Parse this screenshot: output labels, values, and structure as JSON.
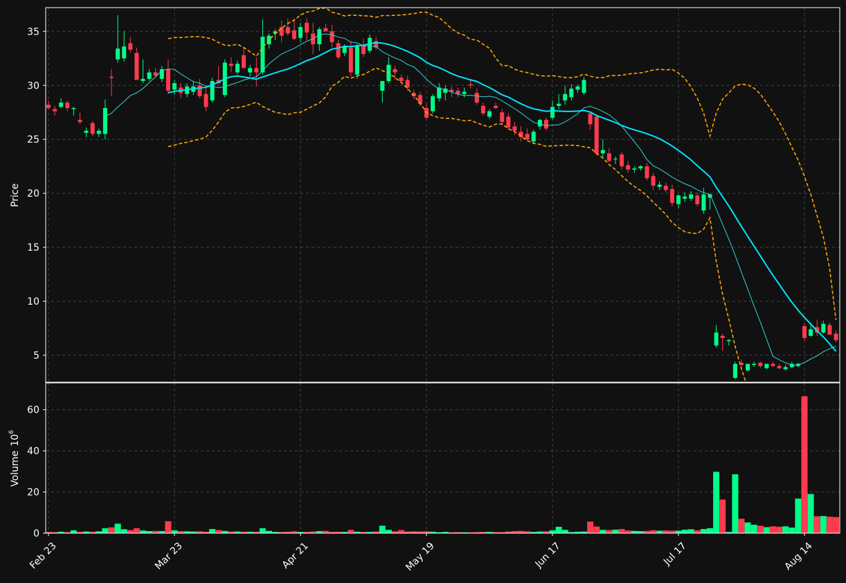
{
  "chart_data": {
    "type": "candlestick",
    "colors": {
      "background": "#111111",
      "up": "#00ff88",
      "down": "#ff3b4e",
      "grid": "#444444",
      "axis": "#ffffff",
      "ma_fast": "#33d6d6",
      "ma_slow": "#00e5ff",
      "bands": "#ffa500"
    },
    "price_panel": {
      "ylabel": "Price",
      "ylim": [
        2.5,
        37.2
      ],
      "yticks": [
        5,
        10,
        15,
        20,
        25,
        30,
        35
      ]
    },
    "volume_panel": {
      "ylabel": "Volume",
      "ylabel_exp": "6",
      "ylim": [
        0,
        73
      ],
      "yticks": [
        0,
        20,
        40,
        60
      ]
    },
    "x_ticks": [
      {
        "label": "Feb 23",
        "i": 0
      },
      {
        "label": "Mar 23",
        "i": 20
      },
      {
        "label": "Apr 21",
        "i": 40
      },
      {
        "label": "May 19",
        "i": 60
      },
      {
        "label": "Jun 17",
        "i": 80
      },
      {
        "label": "Jul 17",
        "i": 100
      },
      {
        "label": "Aug 14",
        "i": 120
      }
    ],
    "candles": [
      [
        28.2,
        28.6,
        27.7,
        27.9,
        0.6
      ],
      [
        27.8,
        28.1,
        27.2,
        27.6,
        0.5
      ],
      [
        28.0,
        28.8,
        27.9,
        28.4,
        0.7
      ],
      [
        28.4,
        28.6,
        27.6,
        27.9,
        0.5
      ],
      [
        27.8,
        28.0,
        27.2,
        27.9,
        1.4
      ],
      [
        26.8,
        27.5,
        26.4,
        26.6,
        0.6
      ],
      [
        25.6,
        26.1,
        25.2,
        25.8,
        0.8
      ],
      [
        26.5,
        26.7,
        25.3,
        25.5,
        0.7
      ],
      [
        25.5,
        26.0,
        25.2,
        25.8,
        0.9
      ],
      [
        25.5,
        28.7,
        25.0,
        27.9,
        2.4
      ],
      [
        30.8,
        31.5,
        29.0,
        30.7,
        2.8
      ],
      [
        32.4,
        36.5,
        32.1,
        33.4,
        4.6
      ],
      [
        32.5,
        35.0,
        32.2,
        33.6,
        1.9
      ],
      [
        33.9,
        34.5,
        33.0,
        33.3,
        1.5
      ],
      [
        33.0,
        33.5,
        30.5,
        30.5,
        2.4
      ],
      [
        30.4,
        32.4,
        30.2,
        30.6,
        1.3
      ],
      [
        30.6,
        31.5,
        30.4,
        31.2,
        1.0
      ],
      [
        31.2,
        31.6,
        30.8,
        30.9,
        1.1
      ],
      [
        30.6,
        31.8,
        30.3,
        31.5,
        1.0
      ],
      [
        31.5,
        32.4,
        29.2,
        29.5,
        5.8
      ],
      [
        29.6,
        30.5,
        29.1,
        30.2,
        1.4
      ],
      [
        29.8,
        30.2,
        28.8,
        29.3,
        1.0
      ],
      [
        29.2,
        30.2,
        28.9,
        29.9,
        0.9
      ],
      [
        29.4,
        30.4,
        29.1,
        29.9,
        0.8
      ],
      [
        30.0,
        30.6,
        28.8,
        29.0,
        0.9
      ],
      [
        29.2,
        29.9,
        27.6,
        28.0,
        0.7
      ],
      [
        28.6,
        30.7,
        28.4,
        30.4,
        2.0
      ],
      [
        30.5,
        31.8,
        30.1,
        30.2,
        1.5
      ],
      [
        29.1,
        32.4,
        28.9,
        32.1,
        1.1
      ],
      [
        32.0,
        32.6,
        31.2,
        31.8,
        0.8
      ],
      [
        31.2,
        32.3,
        31.0,
        32.0,
        0.8
      ],
      [
        32.8,
        33.5,
        31.6,
        31.6,
        0.7
      ],
      [
        31.2,
        31.9,
        30.8,
        31.6,
        0.7
      ],
      [
        31.6,
        32.6,
        29.9,
        31.2,
        0.7
      ],
      [
        31.2,
        36.1,
        31.0,
        34.5,
        2.4
      ],
      [
        33.8,
        34.8,
        33.4,
        34.6,
        1.1
      ],
      [
        34.8,
        35.2,
        34.2,
        35.0,
        0.6
      ],
      [
        35.4,
        36.0,
        34.0,
        34.6,
        0.6
      ],
      [
        35.4,
        36.2,
        34.6,
        34.8,
        0.7
      ],
      [
        35.1,
        36.2,
        34.2,
        34.3,
        0.9
      ],
      [
        34.4,
        35.8,
        34.0,
        35.4,
        0.6
      ],
      [
        35.8,
        36.2,
        34.2,
        34.9,
        0.6
      ],
      [
        34.8,
        35.8,
        32.9,
        33.8,
        0.8
      ],
      [
        33.8,
        35.4,
        33.2,
        35.2,
        1.0
      ],
      [
        35.3,
        35.7,
        35.0,
        35.0,
        1.1
      ],
      [
        35.0,
        35.6,
        33.5,
        34.0,
        0.6
      ],
      [
        33.9,
        34.2,
        32.4,
        32.6,
        0.7
      ],
      [
        33.0,
        33.8,
        32.7,
        33.6,
        0.6
      ],
      [
        33.5,
        34.1,
        30.8,
        31.2,
        1.6
      ],
      [
        31.0,
        33.8,
        30.6,
        33.6,
        0.7
      ],
      [
        33.7,
        34.3,
        32.6,
        32.9,
        0.6
      ],
      [
        33.2,
        34.7,
        33.0,
        34.4,
        0.6
      ],
      [
        34.1,
        34.5,
        33.3,
        33.5,
        0.8
      ],
      [
        29.5,
        30.4,
        28.4,
        30.4,
        3.6
      ],
      [
        30.4,
        32.6,
        30.2,
        31.9,
        1.6
      ],
      [
        31.5,
        31.8,
        30.5,
        31.2,
        0.9
      ],
      [
        30.7,
        31.0,
        30.2,
        30.4,
        1.5
      ],
      [
        30.5,
        30.9,
        29.5,
        29.8,
        0.8
      ],
      [
        29.3,
        29.6,
        28.7,
        29.0,
        0.9
      ],
      [
        29.1,
        29.4,
        28.1,
        28.3,
        0.8
      ],
      [
        27.9,
        28.3,
        26.8,
        27.0,
        0.9
      ],
      [
        27.6,
        29.2,
        27.4,
        29.0,
        0.7
      ],
      [
        28.8,
        30.2,
        28.5,
        29.8,
        0.4
      ],
      [
        29.3,
        30.0,
        28.6,
        29.7,
        0.6
      ],
      [
        29.6,
        29.9,
        28.9,
        29.4,
        0.4
      ],
      [
        29.5,
        29.8,
        28.9,
        29.2,
        0.5
      ],
      [
        29.2,
        29.8,
        28.9,
        29.4,
        0.4
      ],
      [
        30.1,
        30.6,
        29.7,
        30.0,
        0.4
      ],
      [
        29.3,
        29.7,
        28.2,
        28.4,
        0.5
      ],
      [
        28.1,
        28.4,
        27.2,
        27.4,
        0.6
      ],
      [
        27.1,
        27.8,
        26.9,
        27.6,
        0.6
      ],
      [
        28.1,
        28.4,
        27.8,
        27.9,
        0.5
      ],
      [
        27.5,
        27.8,
        26.3,
        26.6,
        0.5
      ],
      [
        27.1,
        27.4,
        25.9,
        26.1,
        0.8
      ],
      [
        26.2,
        26.6,
        25.4,
        25.8,
        1.0
      ],
      [
        25.7,
        26.2,
        24.8,
        25.2,
        1.1
      ],
      [
        25.5,
        26.0,
        24.9,
        25.0,
        0.9
      ],
      [
        24.8,
        25.9,
        24.6,
        25.7,
        0.6
      ],
      [
        26.2,
        26.9,
        25.9,
        26.8,
        0.8
      ],
      [
        26.8,
        27.0,
        25.8,
        26.0,
        0.9
      ],
      [
        27.0,
        28.6,
        26.8,
        28.0,
        1.4
      ],
      [
        28.1,
        29.2,
        27.8,
        28.3,
        3.1
      ],
      [
        28.6,
        30.0,
        28.2,
        29.2,
        1.6
      ],
      [
        28.9,
        30.1,
        28.6,
        29.7,
        0.5
      ],
      [
        29.6,
        30.1,
        29.3,
        29.9,
        0.7
      ],
      [
        29.3,
        30.8,
        29.1,
        30.5,
        0.8
      ],
      [
        27.4,
        27.6,
        25.9,
        26.4,
        5.6
      ],
      [
        27.1,
        27.2,
        23.5,
        23.7,
        3.2
      ],
      [
        23.7,
        25.0,
        23.2,
        24.0,
        1.6
      ],
      [
        23.7,
        24.2,
        22.9,
        23.0,
        1.5
      ],
      [
        23.2,
        23.4,
        22.7,
        23.2,
        1.7
      ],
      [
        23.6,
        23.8,
        22.2,
        22.5,
        2.0
      ],
      [
        22.6,
        23.0,
        21.9,
        22.2,
        1.3
      ],
      [
        22.2,
        22.5,
        21.9,
        22.3,
        1.1
      ],
      [
        22.3,
        22.6,
        22.1,
        22.5,
        1.0
      ],
      [
        22.5,
        22.8,
        21.2,
        21.4,
        1.1
      ],
      [
        21.6,
        21.9,
        20.3,
        20.7,
        1.4
      ],
      [
        20.6,
        21.1,
        20.3,
        20.8,
        1.2
      ],
      [
        20.7,
        21.0,
        20.1,
        20.3,
        1.3
      ],
      [
        20.4,
        20.8,
        18.8,
        19.1,
        1.2
      ],
      [
        19.0,
        19.9,
        18.6,
        19.8,
        1.2
      ],
      [
        19.5,
        20.1,
        19.2,
        19.7,
        1.7
      ],
      [
        19.5,
        20.2,
        19.3,
        19.9,
        1.9
      ],
      [
        19.8,
        20.1,
        18.8,
        19.0,
        1.4
      ],
      [
        18.4,
        20.5,
        18.1,
        19.9,
        2.0
      ],
      [
        19.6,
        19.9,
        18.5,
        19.9,
        2.4
      ],
      [
        5.9,
        7.8,
        5.7,
        7.1,
        29.8
      ],
      [
        6.8,
        7.0,
        5.4,
        6.6,
        16.3
      ],
      [
        6.3,
        6.5,
        5.9,
        6.4,
        0.6
      ],
      [
        2.9,
        4.4,
        2.8,
        4.2,
        28.6
      ],
      [
        4.3,
        4.6,
        3.9,
        4.1,
        7.0
      ],
      [
        3.6,
        4.2,
        3.5,
        4.2,
        5.2
      ],
      [
        4.1,
        4.4,
        3.9,
        4.2,
        4.1
      ],
      [
        4.3,
        4.4,
        3.8,
        4.0,
        3.6
      ],
      [
        3.8,
        4.2,
        3.7,
        4.2,
        2.9
      ],
      [
        4.2,
        4.4,
        3.9,
        4.0,
        3.3
      ],
      [
        4.0,
        4.2,
        3.7,
        3.8,
        3.1
      ],
      [
        3.7,
        4.1,
        3.6,
        3.9,
        3.3
      ],
      [
        3.9,
        4.4,
        3.8,
        4.2,
        2.7
      ],
      [
        4.0,
        4.3,
        3.9,
        4.2,
        16.8
      ],
      [
        7.7,
        8.0,
        6.4,
        6.6,
        66.5
      ],
      [
        6.8,
        7.9,
        6.7,
        7.4,
        19.0
      ],
      [
        7.6,
        8.3,
        6.8,
        7.1,
        8.2
      ],
      [
        7.1,
        8.2,
        7.0,
        7.9,
        8.3
      ],
      [
        7.8,
        8.0,
        6.9,
        6.9,
        8.0
      ],
      [
        7.0,
        7.3,
        6.2,
        6.4,
        7.8
      ]
    ]
  }
}
